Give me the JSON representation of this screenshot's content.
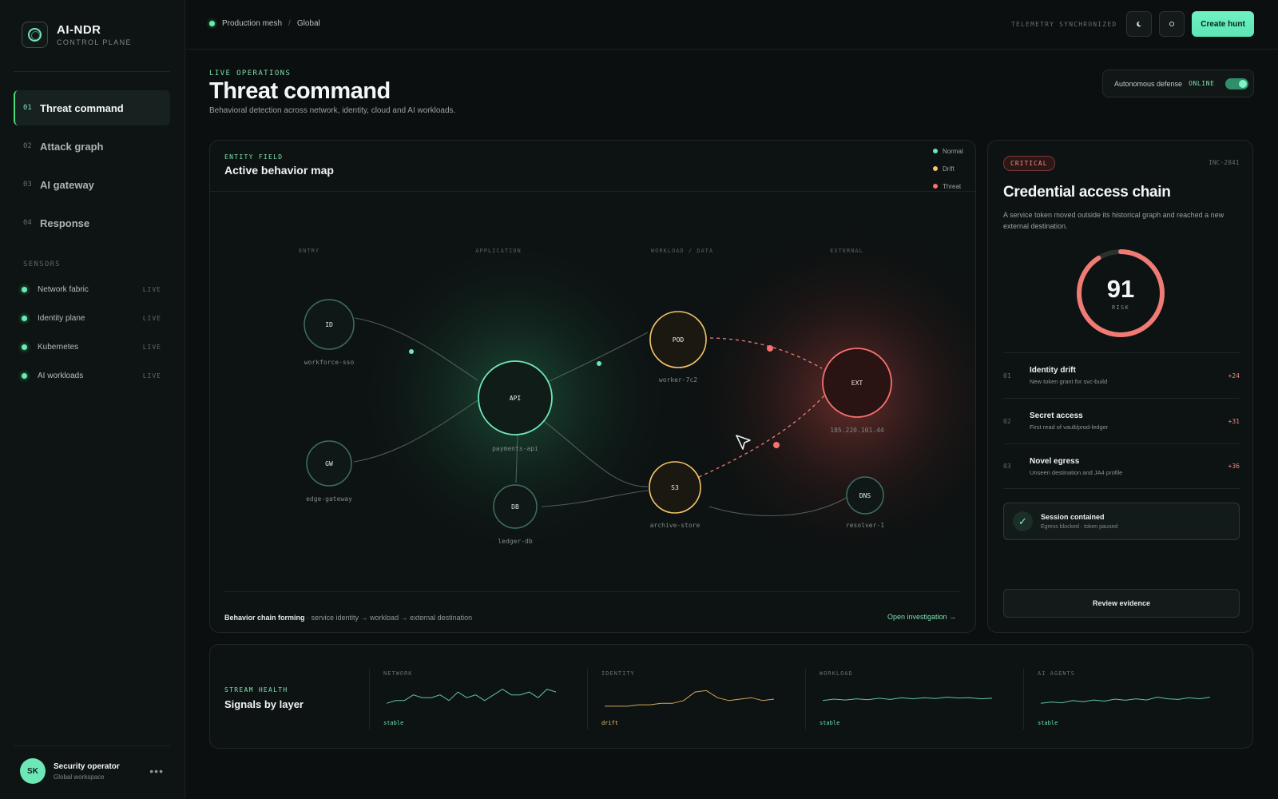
{
  "brand": {
    "title": "AI-NDR",
    "subtitle": "CONTROL PLANE"
  },
  "nav": [
    {
      "num": "01",
      "label": "Threat command",
      "active": true
    },
    {
      "num": "02",
      "label": "Attack graph",
      "active": false
    },
    {
      "num": "03",
      "label": "AI gateway",
      "active": false
    },
    {
      "num": "04",
      "label": "Response",
      "active": false
    }
  ],
  "sensors": {
    "title": "SENSORS",
    "items": [
      {
        "name": "Network fabric",
        "status": "LIVE"
      },
      {
        "name": "Identity plane",
        "status": "LIVE"
      },
      {
        "name": "Kubernetes",
        "status": "LIVE"
      },
      {
        "name": "AI workloads",
        "status": "LIVE"
      }
    ]
  },
  "user": {
    "initials": "SK",
    "name": "Security operator",
    "workspace": "Global workspace",
    "more": "•••"
  },
  "topbar": {
    "breadcrumb": [
      "Production mesh",
      "Global"
    ],
    "separator": "/",
    "telemetry": "TELEMETRY SYNCHRONIZED",
    "create_label": "Create hunt"
  },
  "header": {
    "eyebrow": "LIVE OPERATIONS",
    "title": "Threat command",
    "subtitle": "Behavioral detection across network, identity, cloud and AI workloads.",
    "autonomous_label": "Autonomous defense",
    "autonomous_status": "ONLINE"
  },
  "map": {
    "eyebrow": "ENTITY FIELD",
    "title": "Active behavior map",
    "legend": [
      {
        "label": "Normal",
        "color": "#6ee7b7"
      },
      {
        "label": "Drift",
        "color": "#f5c46b"
      },
      {
        "label": "Threat",
        "color": "#f87171"
      }
    ],
    "columns": [
      "ENTRY",
      "APPLICATION",
      "WORKLOAD / DATA",
      "EXTERNAL"
    ],
    "nodes": [
      {
        "id": "ID",
        "name": "workforce-sso",
        "state": "normal"
      },
      {
        "id": "GW",
        "name": "edge-gateway",
        "state": "normal"
      },
      {
        "id": "API",
        "name": "payments-api",
        "state": "normal"
      },
      {
        "id": "DB",
        "name": "ledger-db",
        "state": "normal"
      },
      {
        "id": "POD",
        "name": "worker-7c2",
        "state": "drift"
      },
      {
        "id": "S3",
        "name": "archive-store",
        "state": "drift"
      },
      {
        "id": "EXT",
        "name": "185.220.101.44",
        "state": "threat"
      },
      {
        "id": "DNS",
        "name": "resolver-1",
        "state": "normal"
      }
    ],
    "footer_bold": "Behavior chain forming",
    "footer_text": " · service identity → workload → external destination",
    "open_label": "Open investigation →"
  },
  "incident": {
    "severity": "CRITICAL",
    "id": "INC-2841",
    "title": "Credential access chain",
    "description": "A service token moved outside its historical graph and reached a new external destination.",
    "risk_score": 91,
    "risk_max": 100,
    "risk_label": "RISK",
    "factors": [
      {
        "num": "01",
        "title": "Identity drift",
        "detail": "New token grant for svc-build",
        "delta": "+24"
      },
      {
        "num": "02",
        "title": "Secret access",
        "detail": "First read of vault/prod-ledger",
        "delta": "+31"
      },
      {
        "num": "03",
        "title": "Novel egress",
        "detail": "Unseen destination and JA4 profile",
        "delta": "+36"
      }
    ],
    "contained_title": "Session contained",
    "contained_detail": "Egress blocked · token paused",
    "check_icon": "✓",
    "review_label": "Review evidence"
  },
  "stream": {
    "eyebrow": "STREAM HEALTH",
    "title": "Signals by layer",
    "layers": [
      {
        "label": "NETWORK",
        "status": "stable",
        "color": "#6ee7b7",
        "values": [
          3,
          4,
          4,
          6,
          5,
          5,
          6,
          4,
          7,
          5,
          6,
          4,
          6,
          8,
          6,
          6,
          7,
          5,
          8,
          7
        ]
      },
      {
        "label": "IDENTITY",
        "status": "drift",
        "color": "#f5c46b",
        "values": [
          2,
          2,
          2,
          2.5,
          2.5,
          3,
          3,
          4,
          7,
          7.5,
          5,
          4,
          4.5,
          5,
          4,
          4.5
        ]
      },
      {
        "label": "WORKLOAD",
        "status": "stable",
        "color": "#6ee7b7",
        "values": [
          4,
          4.5,
          4.2,
          4.6,
          4.3,
          4.8,
          4.4,
          5,
          4.6,
          5,
          4.7,
          5.2,
          4.9,
          5,
          4.6,
          4.8
        ]
      },
      {
        "label": "AI AGENTS",
        "status": "stable",
        "color": "#6ee7b7",
        "values": [
          3,
          3.5,
          3.2,
          4,
          3.6,
          4.2,
          3.8,
          4.5,
          4.1,
          4.6,
          4.2,
          5.2,
          4.6,
          4.4,
          5,
          4.6,
          5.2
        ]
      }
    ]
  }
}
